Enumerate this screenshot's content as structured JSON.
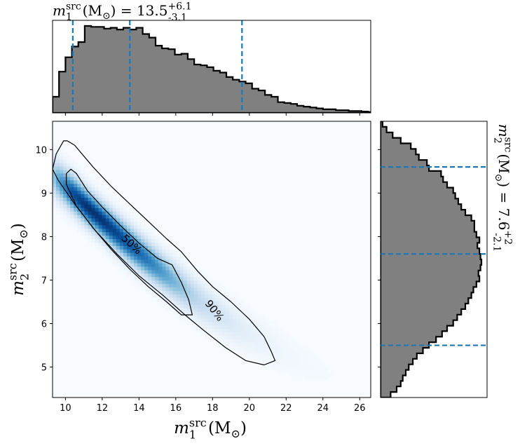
{
  "chart_data": [
    {
      "type": "heatmap",
      "panel": "joint",
      "xlabel": "m_1^src (M_⊙)",
      "ylabel": "m_2^src (M_⊙)",
      "xlim": [
        9.3,
        26.6
      ],
      "ylim": [
        4.3,
        10.65
      ],
      "xticks": [
        10,
        12,
        14,
        16,
        18,
        20,
        22,
        24,
        26
      ],
      "yticks": [
        5,
        6,
        7,
        8,
        9,
        10
      ],
      "colormap": "Blues",
      "density_ridge": {
        "x": [
          9.6,
          10.4,
          11.2,
          12.0,
          12.8,
          13.6,
          14.4,
          15.2,
          16.0,
          16.8,
          17.6,
          18.4,
          19.2,
          20.0,
          21.0,
          22.0,
          23.0,
          24.0,
          25.0
        ],
        "y": [
          9.3,
          9.0,
          8.68,
          8.38,
          8.08,
          7.78,
          7.5,
          7.22,
          6.95,
          6.68,
          6.43,
          6.2,
          5.98,
          5.78,
          5.55,
          5.32,
          5.1,
          4.9,
          4.7
        ],
        "weight": [
          0.55,
          0.9,
          1.0,
          0.98,
          0.92,
          0.84,
          0.74,
          0.6,
          0.46,
          0.33,
          0.24,
          0.18,
          0.13,
          0.09,
          0.06,
          0.04,
          0.025,
          0.015,
          0.008
        ]
      },
      "contours": [
        {
          "label": "50%",
          "label_at": [
            13.6,
            7.82
          ],
          "label_rotation": 43,
          "points": [
            [
              10.3,
              9.55
            ],
            [
              10.6,
              9.45
            ],
            [
              11.2,
              9.05
            ],
            [
              12.0,
              8.68
            ],
            [
              13.0,
              8.25
            ],
            [
              14.0,
              7.85
            ],
            [
              15.0,
              7.5
            ],
            [
              15.8,
              7.35
            ],
            [
              16.3,
              6.95
            ],
            [
              16.7,
              6.55
            ],
            [
              16.9,
              6.2
            ],
            [
              16.3,
              6.2
            ],
            [
              15.5,
              6.5
            ],
            [
              14.5,
              6.85
            ],
            [
              13.5,
              7.25
            ],
            [
              12.5,
              7.7
            ],
            [
              11.5,
              8.2
            ],
            [
              10.6,
              8.7
            ],
            [
              10.05,
              9.2
            ],
            [
              10.05,
              9.45
            ],
            [
              10.3,
              9.55
            ]
          ]
        },
        {
          "label": "90%",
          "label_at": [
            18.1,
            6.3
          ],
          "label_rotation": 52,
          "points": [
            [
              10.1,
              10.2
            ],
            [
              10.5,
              10.1
            ],
            [
              11.5,
              9.6
            ],
            [
              12.5,
              9.15
            ],
            [
              13.5,
              8.75
            ],
            [
              14.5,
              8.35
            ],
            [
              15.5,
              7.95
            ],
            [
              16.3,
              7.65
            ],
            [
              17.2,
              7.2
            ],
            [
              18.0,
              6.85
            ],
            [
              19.0,
              6.5
            ],
            [
              20.0,
              6.1
            ],
            [
              20.8,
              5.7
            ],
            [
              21.2,
              5.35
            ],
            [
              21.4,
              5.15
            ],
            [
              20.8,
              5.05
            ],
            [
              19.8,
              5.15
            ],
            [
              18.7,
              5.45
            ],
            [
              17.5,
              5.85
            ],
            [
              16.5,
              6.2
            ],
            [
              15.3,
              6.65
            ],
            [
              14.0,
              7.1
            ],
            [
              12.8,
              7.6
            ],
            [
              11.6,
              8.15
            ],
            [
              10.5,
              8.75
            ],
            [
              9.6,
              9.3
            ],
            [
              9.3,
              9.55
            ],
            [
              9.5,
              9.9
            ],
            [
              9.9,
              10.2
            ],
            [
              10.1,
              10.2
            ]
          ]
        }
      ]
    },
    {
      "type": "bar",
      "panel": "top-marginal",
      "title": "m_1^src (M_⊙) = 13.5^{+6.1}_{-3.1}",
      "xlim": [
        9.3,
        26.6
      ],
      "bin_start": 9.3,
      "bin_width": 0.35,
      "density": [
        0.18,
        0.46,
        0.62,
        0.74,
        0.79,
        0.97,
        0.96,
        0.96,
        0.94,
        0.95,
        0.93,
        0.95,
        0.93,
        0.95,
        0.88,
        0.84,
        0.75,
        0.72,
        0.71,
        0.65,
        0.66,
        0.6,
        0.54,
        0.53,
        0.51,
        0.47,
        0.45,
        0.4,
        0.37,
        0.35,
        0.33,
        0.27,
        0.25,
        0.2,
        0.18,
        0.12,
        0.11,
        0.1,
        0.08,
        0.07,
        0.06,
        0.05,
        0.04,
        0.04,
        0.03,
        0.03,
        0.02,
        0.02,
        0.015,
        0.01
      ],
      "quantile_lines": [
        10.4,
        13.5,
        19.6
      ],
      "line_color": "#1f77b4",
      "fill_color": "#808080"
    },
    {
      "type": "bar",
      "panel": "right-marginal",
      "title": "m_2^src (M_⊙) = 7.6^{+2}_{-2.1}",
      "ylim": [
        4.3,
        10.65
      ],
      "bin_start": 4.3,
      "bin_width": 0.127,
      "density": [
        0.1,
        0.16,
        0.2,
        0.22,
        0.25,
        0.28,
        0.32,
        0.36,
        0.42,
        0.48,
        0.55,
        0.61,
        0.66,
        0.72,
        0.76,
        0.8,
        0.84,
        0.87,
        0.9,
        0.92,
        0.95,
        0.98,
        0.97,
        0.99,
        1.0,
        0.99,
        0.98,
        0.96,
        0.98,
        0.95,
        0.93,
        0.93,
        0.9,
        0.84,
        0.8,
        0.77,
        0.74,
        0.72,
        0.66,
        0.62,
        0.6,
        0.48,
        0.46,
        0.38,
        0.35,
        0.3,
        0.2,
        0.12,
        0.06,
        0.02
      ],
      "quantile_lines": [
        5.5,
        7.6,
        9.6
      ],
      "line_color": "#1f77b4",
      "fill_color": "#808080"
    }
  ]
}
